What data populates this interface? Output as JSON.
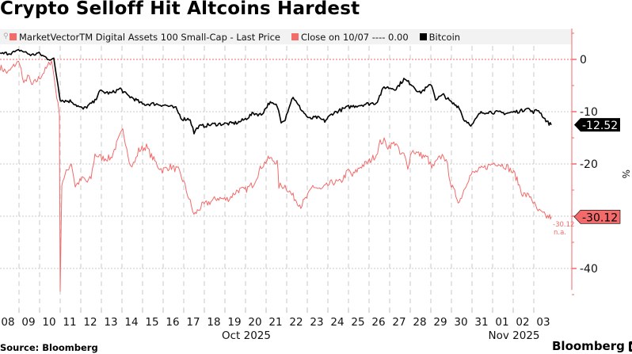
{
  "header": {
    "title": "Crypto Selloff Hit Altcoins Hardest"
  },
  "footer": {
    "source": "Source: Bloomberg",
    "brand": "Bloomberg"
  },
  "chart_data": {
    "type": "line",
    "title": "Crypto Selloff Hit Altcoins Hardest",
    "xlabel": "",
    "ylabel": "%",
    "ylim": [
      -50,
      6
    ],
    "yticks": [
      0,
      -10,
      -20,
      -30,
      -40
    ],
    "ytick_labels": [
      "0",
      "-10",
      "-20",
      "-30",
      "-40"
    ],
    "xlim_days": [
      0,
      26.9
    ],
    "x_unit": "days since Oct 08 2025",
    "xtick_labels": [
      "08",
      "09",
      "10",
      "11",
      "12",
      "13",
      "14",
      "15",
      "16",
      "17",
      "18",
      "19",
      "20",
      "21",
      "22",
      "23",
      "24",
      "25",
      "26",
      "27",
      "28",
      "29",
      "30",
      "31",
      "01",
      "02",
      "03"
    ],
    "month_labels": [
      {
        "label": "Oct 2025",
        "center_day": 12.5
      },
      {
        "label": "Nov 2025",
        "center_day": 25.5
      }
    ],
    "grid": true,
    "legend_position": "top",
    "legend": [
      {
        "label": "MarketVectorTM Digital Assets 100 Small-Cap - Last Price",
        "color": "#f26a6a"
      },
      {
        "label": "Close on 10/07 ---- 0.00",
        "color": "#f26a6a"
      },
      {
        "label": "Bitcoin",
        "color": "#000000"
      }
    ],
    "reference_line": {
      "label": "Close on 10/07",
      "value": 0.0,
      "color": "#f26a6a"
    },
    "series": [
      {
        "name": "MarketVectorTM Digital Assets 100 Small-Cap - Last Price",
        "color": "#f26a6a",
        "last_value": -30.12,
        "last_label": "-30.12",
        "annotation": [
          "-30.12",
          "n.a."
        ],
        "x": [
          0.08,
          0.46,
          0.85,
          1.04,
          1.23,
          1.42,
          1.62,
          2.0,
          2.38,
          2.58,
          2.77,
          2.96,
          3.0,
          3.08,
          3.35,
          3.54,
          3.73,
          4.12,
          4.31,
          4.5,
          4.69,
          5.08,
          5.46,
          5.85,
          6.04,
          6.23,
          6.42,
          6.62,
          6.81,
          7.19,
          7.38,
          7.77,
          7.96,
          8.35,
          8.73,
          9.0,
          9.31,
          9.5,
          9.88,
          10.27,
          10.65,
          11.04,
          11.23,
          11.62,
          12.0,
          12.38,
          12.77,
          13.15,
          13.54,
          13.62,
          13.92,
          14.31,
          14.69,
          15.08,
          15.27,
          15.65,
          16.23,
          16.62,
          17.0,
          17.19,
          17.58,
          17.96,
          18.35,
          18.54,
          18.73,
          18.92,
          19.31,
          19.5,
          19.69,
          19.88,
          20.08,
          20.46,
          20.85,
          21.04,
          21.42,
          21.62,
          21.81,
          22.0,
          22.38,
          22.77,
          22.96,
          23.35,
          23.73,
          24.12,
          24.69,
          25.08,
          25.46,
          25.85,
          26.15,
          26.62,
          26.77,
          26.85
        ],
        "values": [
          -1.5,
          -2.6,
          -0.8,
          -0.5,
          -5.0,
          -3.0,
          -5.0,
          -3.5,
          -1.5,
          0.0,
          -5.3,
          -10.6,
          -44.4,
          -23.5,
          -21.2,
          -19.7,
          -24.2,
          -22.7,
          -23.5,
          -22.7,
          -18.2,
          -18.9,
          -18.9,
          -15.2,
          -13.6,
          -16.7,
          -20.5,
          -19.7,
          -17.4,
          -16.7,
          -18.2,
          -20.5,
          -21.2,
          -20.5,
          -21.2,
          -23.5,
          -27.3,
          -29.8,
          -28.0,
          -27.3,
          -26.5,
          -26.8,
          -26.5,
          -25.0,
          -25.0,
          -23.8,
          -20.5,
          -18.9,
          -19.7,
          -24.2,
          -24.2,
          -26.2,
          -28.0,
          -25.8,
          -24.2,
          -25.0,
          -23.5,
          -23.5,
          -21.2,
          -22.3,
          -20.5,
          -19.7,
          -18.2,
          -15.9,
          -15.6,
          -16.7,
          -15.9,
          -18.2,
          -18.2,
          -20.5,
          -17.4,
          -18.2,
          -18.9,
          -20.8,
          -18.9,
          -18.2,
          -20.5,
          -24.2,
          -27.3,
          -23.2,
          -22.0,
          -21.2,
          -20.5,
          -19.7,
          -20.5,
          -22.0,
          -25.8,
          -26.2,
          -28.8,
          -30.1,
          -30.12,
          -30.12
        ]
      },
      {
        "name": "Bitcoin",
        "color": "#000000",
        "last_value": -12.52,
        "last_label": "-12.52",
        "x": [
          0.08,
          0.85,
          1.04,
          1.62,
          1.92,
          2.38,
          2.69,
          2.85,
          3.0,
          3.15,
          3.54,
          3.92,
          4.12,
          4.69,
          4.88,
          5.46,
          5.92,
          6.23,
          6.62,
          7.0,
          7.58,
          8.15,
          8.62,
          8.92,
          9.31,
          9.5,
          9.69,
          10.46,
          11.23,
          11.62,
          12.0,
          12.38,
          12.77,
          13.15,
          13.54,
          13.73,
          13.92,
          14.12,
          14.31,
          14.5,
          15.08,
          15.46,
          15.85,
          16.23,
          17.0,
          17.77,
          18.35,
          18.73,
          19.31,
          19.69,
          20.08,
          20.46,
          20.85,
          21.04,
          21.23,
          21.62,
          22.0,
          22.38,
          22.58,
          23.0,
          23.38,
          23.73,
          24.69,
          25.46,
          25.65,
          25.92,
          26.23,
          26.54,
          26.69,
          26.85
        ],
        "values": [
          1.0,
          1.4,
          1.8,
          0.8,
          1.2,
          0.2,
          0.0,
          -3.8,
          -7.6,
          -7.9,
          -8.0,
          -9.1,
          -9.5,
          -8.0,
          -6.1,
          -6.5,
          -5.6,
          -6.8,
          -7.6,
          -8.6,
          -8.5,
          -8.8,
          -9.4,
          -11.4,
          -11.4,
          -14.1,
          -12.9,
          -12.4,
          -12.3,
          -12.1,
          -11.4,
          -10.3,
          -10.6,
          -8.3,
          -8.9,
          -11.8,
          -11.4,
          -9.0,
          -7.1,
          -8.5,
          -11.4,
          -11.1,
          -11.8,
          -10.3,
          -9.1,
          -8.6,
          -8.3,
          -5.3,
          -5.6,
          -3.8,
          -4.8,
          -6.4,
          -5.3,
          -4.8,
          -7.6,
          -6.8,
          -8.3,
          -9.1,
          -11.4,
          -12.6,
          -10.3,
          -10.0,
          -10.3,
          -9.8,
          -9.1,
          -10.1,
          -9.7,
          -11.4,
          -12.1,
          -12.52
        ]
      }
    ]
  }
}
